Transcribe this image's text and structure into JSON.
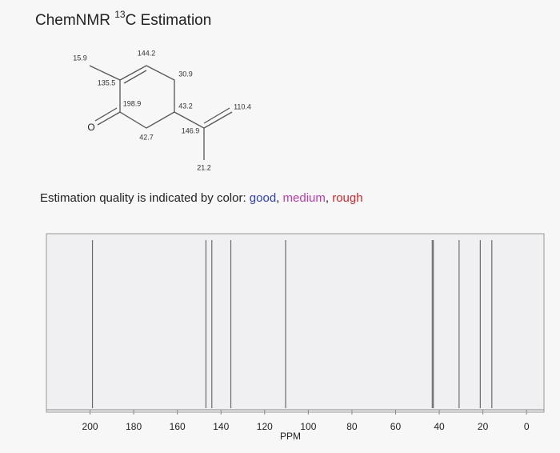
{
  "header": {
    "title_prefix": "ChemNMR ",
    "title_superscript": "13",
    "title_suffix": "C Estimation"
  },
  "molecule": {
    "atom": "O",
    "shifts": [
      "15.9",
      "144.2",
      "135.5",
      "30.9",
      "198.9",
      "43.2",
      "110.4",
      "146.9",
      "42.7",
      "21.2"
    ]
  },
  "quality_note": {
    "parts": [
      {
        "text": "Estimation quality is indicated by color: ",
        "color": "#222222"
      },
      {
        "text": "good",
        "color": "#2b3fc4"
      },
      {
        "text": ", ",
        "color": "#222222"
      },
      {
        "text": "medium",
        "color": "#c03aa8"
      },
      {
        "text": ", ",
        "color": "#222222"
      },
      {
        "text": "rough",
        "color": "#d4262c"
      }
    ]
  },
  "chart_data": {
    "type": "stem",
    "x_label": "PPM",
    "x": [
      198.9,
      146.9,
      144.2,
      135.5,
      110.4,
      43.2,
      42.7,
      30.9,
      21.2,
      15.9
    ],
    "color": "#6a6a6a",
    "xlim": [
      220,
      -8
    ],
    "xticks": [
      200,
      180,
      160,
      140,
      120,
      100,
      80,
      60,
      40,
      20,
      0
    ]
  }
}
